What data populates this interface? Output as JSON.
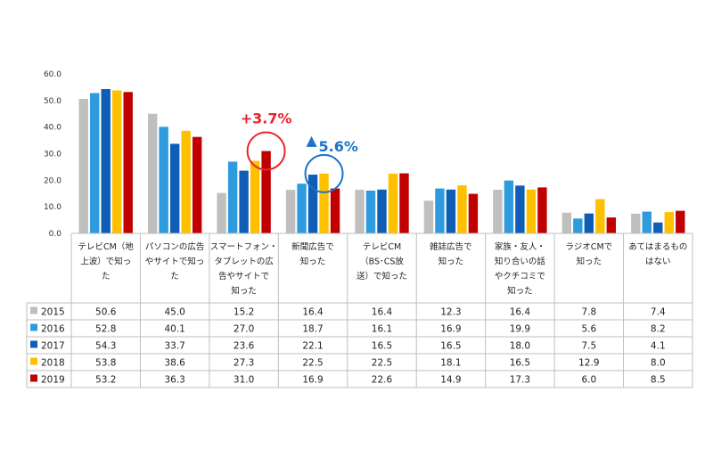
{
  "chart_data": {
    "type": "bar",
    "categories": [
      [
        "テレビCM（地",
        "上波）で知っ",
        "た"
      ],
      [
        "パソコンの広告",
        "やサイトで知っ",
        "た"
      ],
      [
        "スマートフォン・",
        "タブレットの広",
        "告やサイトで",
        "知った"
      ],
      [
        "新聞広告で",
        "知った"
      ],
      [
        "テレビCM",
        "（BS･CS放",
        "送）で知った"
      ],
      [
        "雑誌広告で",
        "知った"
      ],
      [
        "家族・友人・",
        "知り合いの話",
        "やクチコミで",
        "知った"
      ],
      [
        "ラジオCMで",
        "知った"
      ],
      [
        "あてはまるもの",
        "はない"
      ]
    ],
    "series": [
      {
        "name": "2015",
        "color": "#BFBFBF",
        "values": [
          50.6,
          45.0,
          15.2,
          16.4,
          16.4,
          12.3,
          16.4,
          7.8,
          7.4
        ]
      },
      {
        "name": "2016",
        "color": "#2E9BDE",
        "values": [
          52.8,
          40.1,
          27.0,
          18.7,
          16.1,
          16.9,
          19.9,
          5.6,
          8.2
        ]
      },
      {
        "name": "2017",
        "color": "#0F5DB5",
        "values": [
          54.3,
          33.7,
          23.6,
          22.1,
          16.5,
          16.5,
          18.0,
          7.5,
          4.1
        ]
      },
      {
        "name": "2018",
        "color": "#FFC000",
        "values": [
          53.8,
          38.6,
          27.3,
          22.5,
          22.5,
          18.1,
          16.5,
          12.9,
          8.0
        ]
      },
      {
        "name": "2019",
        "color": "#C00000",
        "values": [
          53.2,
          36.3,
          31.0,
          16.9,
          22.6,
          14.9,
          17.3,
          6.0,
          8.5
        ]
      }
    ],
    "value_labels": [
      [
        "50.6",
        "45.0",
        "15.2",
        "16.4",
        "16.4",
        "12.3",
        "16.4",
        "7.8",
        "7.4"
      ],
      [
        "52.8",
        "40.1",
        "27.0",
        "18.7",
        "16.1",
        "16.9",
        "19.9",
        "5.6",
        "8.2"
      ],
      [
        "54.3",
        "33.7",
        "23.6",
        "22.1",
        "16.5",
        "16.5",
        "18.0",
        "7.5",
        "4.1"
      ],
      [
        "53.8",
        "38.6",
        "27.3",
        "22.5",
        "22.5",
        "18.1",
        "16.5",
        "12.9",
        "8.0"
      ],
      [
        "53.2",
        "36.3",
        "31.0",
        "16.9",
        "22.6",
        "14.9",
        "17.3",
        "6.0",
        "8.5"
      ]
    ],
    "y_ticks": [
      "0.0",
      "10.0",
      "20.0",
      "30.0",
      "40.0",
      "50.0",
      "60.0"
    ],
    "ylim": [
      0,
      60
    ],
    "grid": false,
    "legend": "data-table",
    "annotations": [
      {
        "text": "+3.7%",
        "color": "#E8242C",
        "category_index": 2,
        "series_index": 4,
        "arrow": ""
      },
      {
        "text": "5.6%",
        "color": "#1A73C9",
        "category_index": 3,
        "series_index": 3,
        "arrow": "up-triangle"
      }
    ],
    "title": "",
    "xlabel": "",
    "ylabel": ""
  }
}
